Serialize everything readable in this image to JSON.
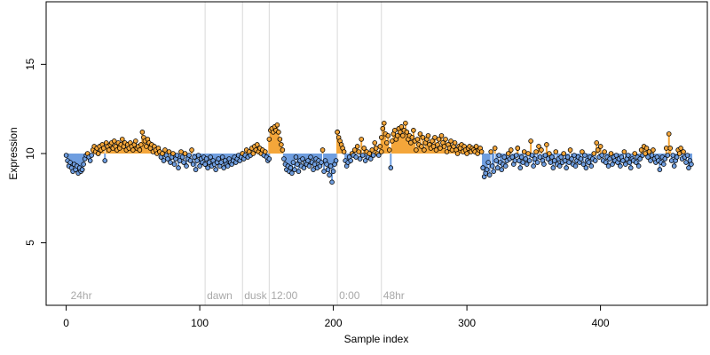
{
  "chart_data": {
    "type": "scatter",
    "title": "",
    "xlabel": "Sample index",
    "ylabel": "Expression",
    "xlim": [
      -15,
      480
    ],
    "ylim": [
      1.5,
      18.5
    ],
    "baseline": 10,
    "x_ticks": [
      0,
      100,
      200,
      300,
      400
    ],
    "y_ticks": [
      5,
      10,
      15
    ],
    "grid": false,
    "legend": "none",
    "colors": {
      "above": "#f4a63a",
      "below": "#6f9ee0",
      "point_stroke": "#000000",
      "guide": "#d9d9d9",
      "label": "#a8a8a8"
    },
    "phase_markers": [
      {
        "x": 104,
        "label": "dawn"
      },
      {
        "x": 132,
        "label": "dusk"
      },
      {
        "x": 152,
        "label": "12:00"
      },
      {
        "x": 203,
        "label": "0:00"
      },
      {
        "x": 236,
        "label": "48hr"
      }
    ],
    "start_label": {
      "x": 2,
      "label": "24hr"
    },
    "segments": [
      {
        "from": 0,
        "to": 12,
        "values": [
          9.9,
          9.6,
          9.3,
          9.5,
          9.2,
          9.0,
          9.4,
          9.1,
          9.3,
          8.9,
          9.2,
          9.0,
          9.1
        ]
      },
      {
        "from": 12,
        "to": 24,
        "values": [
          9.1,
          9.4,
          9.7,
          9.9,
          10.0,
          9.8,
          9.6,
          9.9,
          10.2,
          10.4,
          10.1,
          10.3,
          10.0
        ]
      },
      {
        "from": 24,
        "to": 55,
        "values": [
          10.0,
          10.4,
          10.2,
          10.5,
          10.3,
          9.6,
          10.6,
          10.4,
          10.2,
          10.5,
          10.6,
          10.3,
          10.7,
          10.4,
          10.2,
          10.6,
          10.3,
          10.5,
          10.8,
          10.4,
          10.6,
          10.2,
          10.5,
          10.3,
          10.6,
          10.4,
          10.2,
          10.5,
          10.7,
          10.3,
          10.4,
          10.2
        ]
      },
      {
        "from": 55,
        "to": 70,
        "values": [
          10.2,
          10.5,
          11.2,
          10.9,
          10.7,
          10.4,
          10.8,
          10.6,
          10.3,
          10.5,
          10.1,
          10.4,
          10.2,
          10.0,
          10.3,
          10.1
        ]
      },
      {
        "from": 70,
        "to": 104,
        "values": [
          10.1,
          9.8,
          10.0,
          9.6,
          10.2,
          9.9,
          9.7,
          10.1,
          9.5,
          9.8,
          10.0,
          9.4,
          9.7,
          9.9,
          9.2,
          9.6,
          10.1,
          9.8,
          9.5,
          10.0,
          9.3,
          9.7,
          9.9,
          9.6,
          10.2,
          9.4,
          9.8,
          9.1,
          9.6,
          9.9,
          9.3,
          9.7,
          9.5,
          9.8,
          9.4
        ]
      },
      {
        "from": 104,
        "to": 132,
        "values": [
          9.4,
          9.7,
          9.2,
          9.5,
          9.8,
          9.3,
          9.6,
          9.4,
          9.1,
          9.5,
          9.7,
          9.3,
          9.5,
          9.8,
          9.2,
          9.6,
          9.4,
          9.3,
          9.7,
          9.5,
          9.4,
          9.6,
          9.8,
          9.5,
          9.7,
          9.9,
          9.6,
          9.8,
          10.0
        ]
      },
      {
        "from": 132,
        "to": 152,
        "values": [
          10.0,
          9.7,
          9.9,
          10.2,
          9.8,
          10.1,
          9.9,
          10.3,
          10.0,
          10.4,
          10.2,
          10.5,
          10.1,
          10.3,
          10.0,
          10.2,
          9.9,
          10.1,
          9.8,
          9.6,
          9.7
        ]
      },
      {
        "from": 152,
        "to": 168,
        "values": [
          10.8,
          11.3,
          11.4,
          11.2,
          11.5,
          11.3,
          11.6,
          11.2,
          10.8,
          10.5,
          10.2,
          9.7,
          9.4,
          9.1,
          9.3,
          9.0,
          9.2
        ]
      },
      {
        "from": 168,
        "to": 203,
        "values": [
          9.2,
          8.9,
          9.5,
          9.1,
          9.8,
          9.4,
          9.0,
          9.6,
          9.3,
          9.7,
          9.2,
          9.5,
          9.4,
          9.6,
          9.3,
          9.8,
          9.5,
          9.1,
          9.4,
          9.7,
          9.2,
          9.6,
          9.3,
          9.5,
          10.2,
          9.0,
          9.6,
          9.4,
          9.1,
          8.8,
          9.3,
          8.4,
          9.0,
          9.4,
          9.6,
          11.2
        ]
      },
      {
        "from": 203,
        "to": 236,
        "values": [
          11.2,
          10.9,
          10.7,
          10.5,
          10.3,
          10.1,
          9.6,
          9.3,
          9.5,
          9.8,
          9.6,
          10.0,
          9.9,
          10.2,
          9.8,
          10.4,
          10.1,
          9.7,
          10.8,
          9.9,
          10.3,
          9.6,
          10.1,
          9.8,
          10.0,
          9.7,
          10.2,
          9.9,
          10.6,
          10.3,
          10.0,
          9.9,
          10.4,
          10.1
        ]
      },
      {
        "from": 236,
        "to": 312,
        "values": [
          10.9,
          11.4,
          11.7,
          11.1,
          10.6,
          11.0,
          10.2,
          9.2,
          10.7,
          11.1,
          11.3,
          10.8,
          11.0,
          11.4,
          11.2,
          11.5,
          11.0,
          11.3,
          11.7,
          11.2,
          10.8,
          11.0,
          10.6,
          10.9,
          11.3,
          10.7,
          10.2,
          10.8,
          10.5,
          11.1,
          10.4,
          10.9,
          10.2,
          10.6,
          10.8,
          11.0,
          10.5,
          10.3,
          10.7,
          10.4,
          10.9,
          10.2,
          10.5,
          10.8,
          10.3,
          11.0,
          10.6,
          10.4,
          10.8,
          10.1,
          10.5,
          10.3,
          10.7,
          10.2,
          10.4,
          10.6,
          10.2,
          10.0,
          10.4,
          10.3,
          10.5,
          10.1,
          10.4,
          10.2,
          10.0,
          10.3,
          10.4,
          10.1,
          10.3,
          10.2,
          10.1,
          10.4,
          10.0,
          10.2,
          10.3,
          10.1,
          9.2
        ]
      },
      {
        "from": 312,
        "to": 338,
        "values": [
          9.2,
          8.7,
          8.9,
          9.1,
          9.5,
          8.8,
          10.1,
          9.3,
          9.0,
          10.3,
          9.6,
          9.2,
          9.9,
          9.5,
          9.1,
          9.4,
          9.8,
          9.3,
          9.6,
          10.0,
          9.7,
          10.2,
          9.8,
          9.4,
          9.6,
          9.9,
          10.3
        ]
      },
      {
        "from": 338,
        "to": 468,
        "values": [
          10.3,
          9.6,
          9.2,
          9.8,
          9.5,
          10.1,
          9.7,
          9.4,
          10.0,
          9.6,
          10.7,
          9.9,
          9.3,
          9.7,
          10.1,
          9.5,
          10.4,
          9.8,
          10.2,
          9.6,
          9.4,
          9.9,
          10.5,
          9.7,
          10.0,
          9.5,
          9.8,
          9.2,
          9.6,
          10.1,
          9.4,
          9.7,
          9.3,
          9.8,
          9.5,
          10.0,
          9.6,
          9.2,
          9.8,
          9.5,
          10.2,
          9.7,
          9.4,
          9.9,
          9.3,
          9.6,
          9.8,
          9.5,
          9.7,
          10.1,
          9.4,
          9.9,
          9.2,
          9.6,
          9.5,
          9.8,
          9.3,
          9.7,
          10.0,
          9.6,
          10.6,
          10.2,
          9.8,
          10.4,
          9.9,
          9.6,
          10.1,
          9.5,
          9.8,
          9.3,
          9.7,
          10.0,
          9.4,
          9.8,
          9.6,
          9.9,
          9.5,
          9.7,
          9.3,
          9.8,
          9.6,
          10.1,
          9.4,
          9.7,
          9.9,
          9.5,
          9.2,
          9.7,
          9.6,
          10.0,
          9.5,
          9.8,
          9.3,
          9.7,
          10.2,
          9.9,
          10.4,
          10.0,
          10.3,
          9.8,
          10.1,
          9.6,
          9.9,
          10.2,
          9.7,
          9.5,
          9.8,
          9.6,
          9.1,
          9.5,
          9.8,
          9.4,
          9.7,
          10.3,
          9.9,
          11.1,
          10.3,
          9.6,
          9.9,
          9.3,
          9.6,
          9.8,
          10.2,
          10.0,
          10.3,
          9.7,
          10.1,
          9.8,
          9.5,
          9.9,
          9.2,
          9.6,
          9.4
        ]
      }
    ]
  }
}
